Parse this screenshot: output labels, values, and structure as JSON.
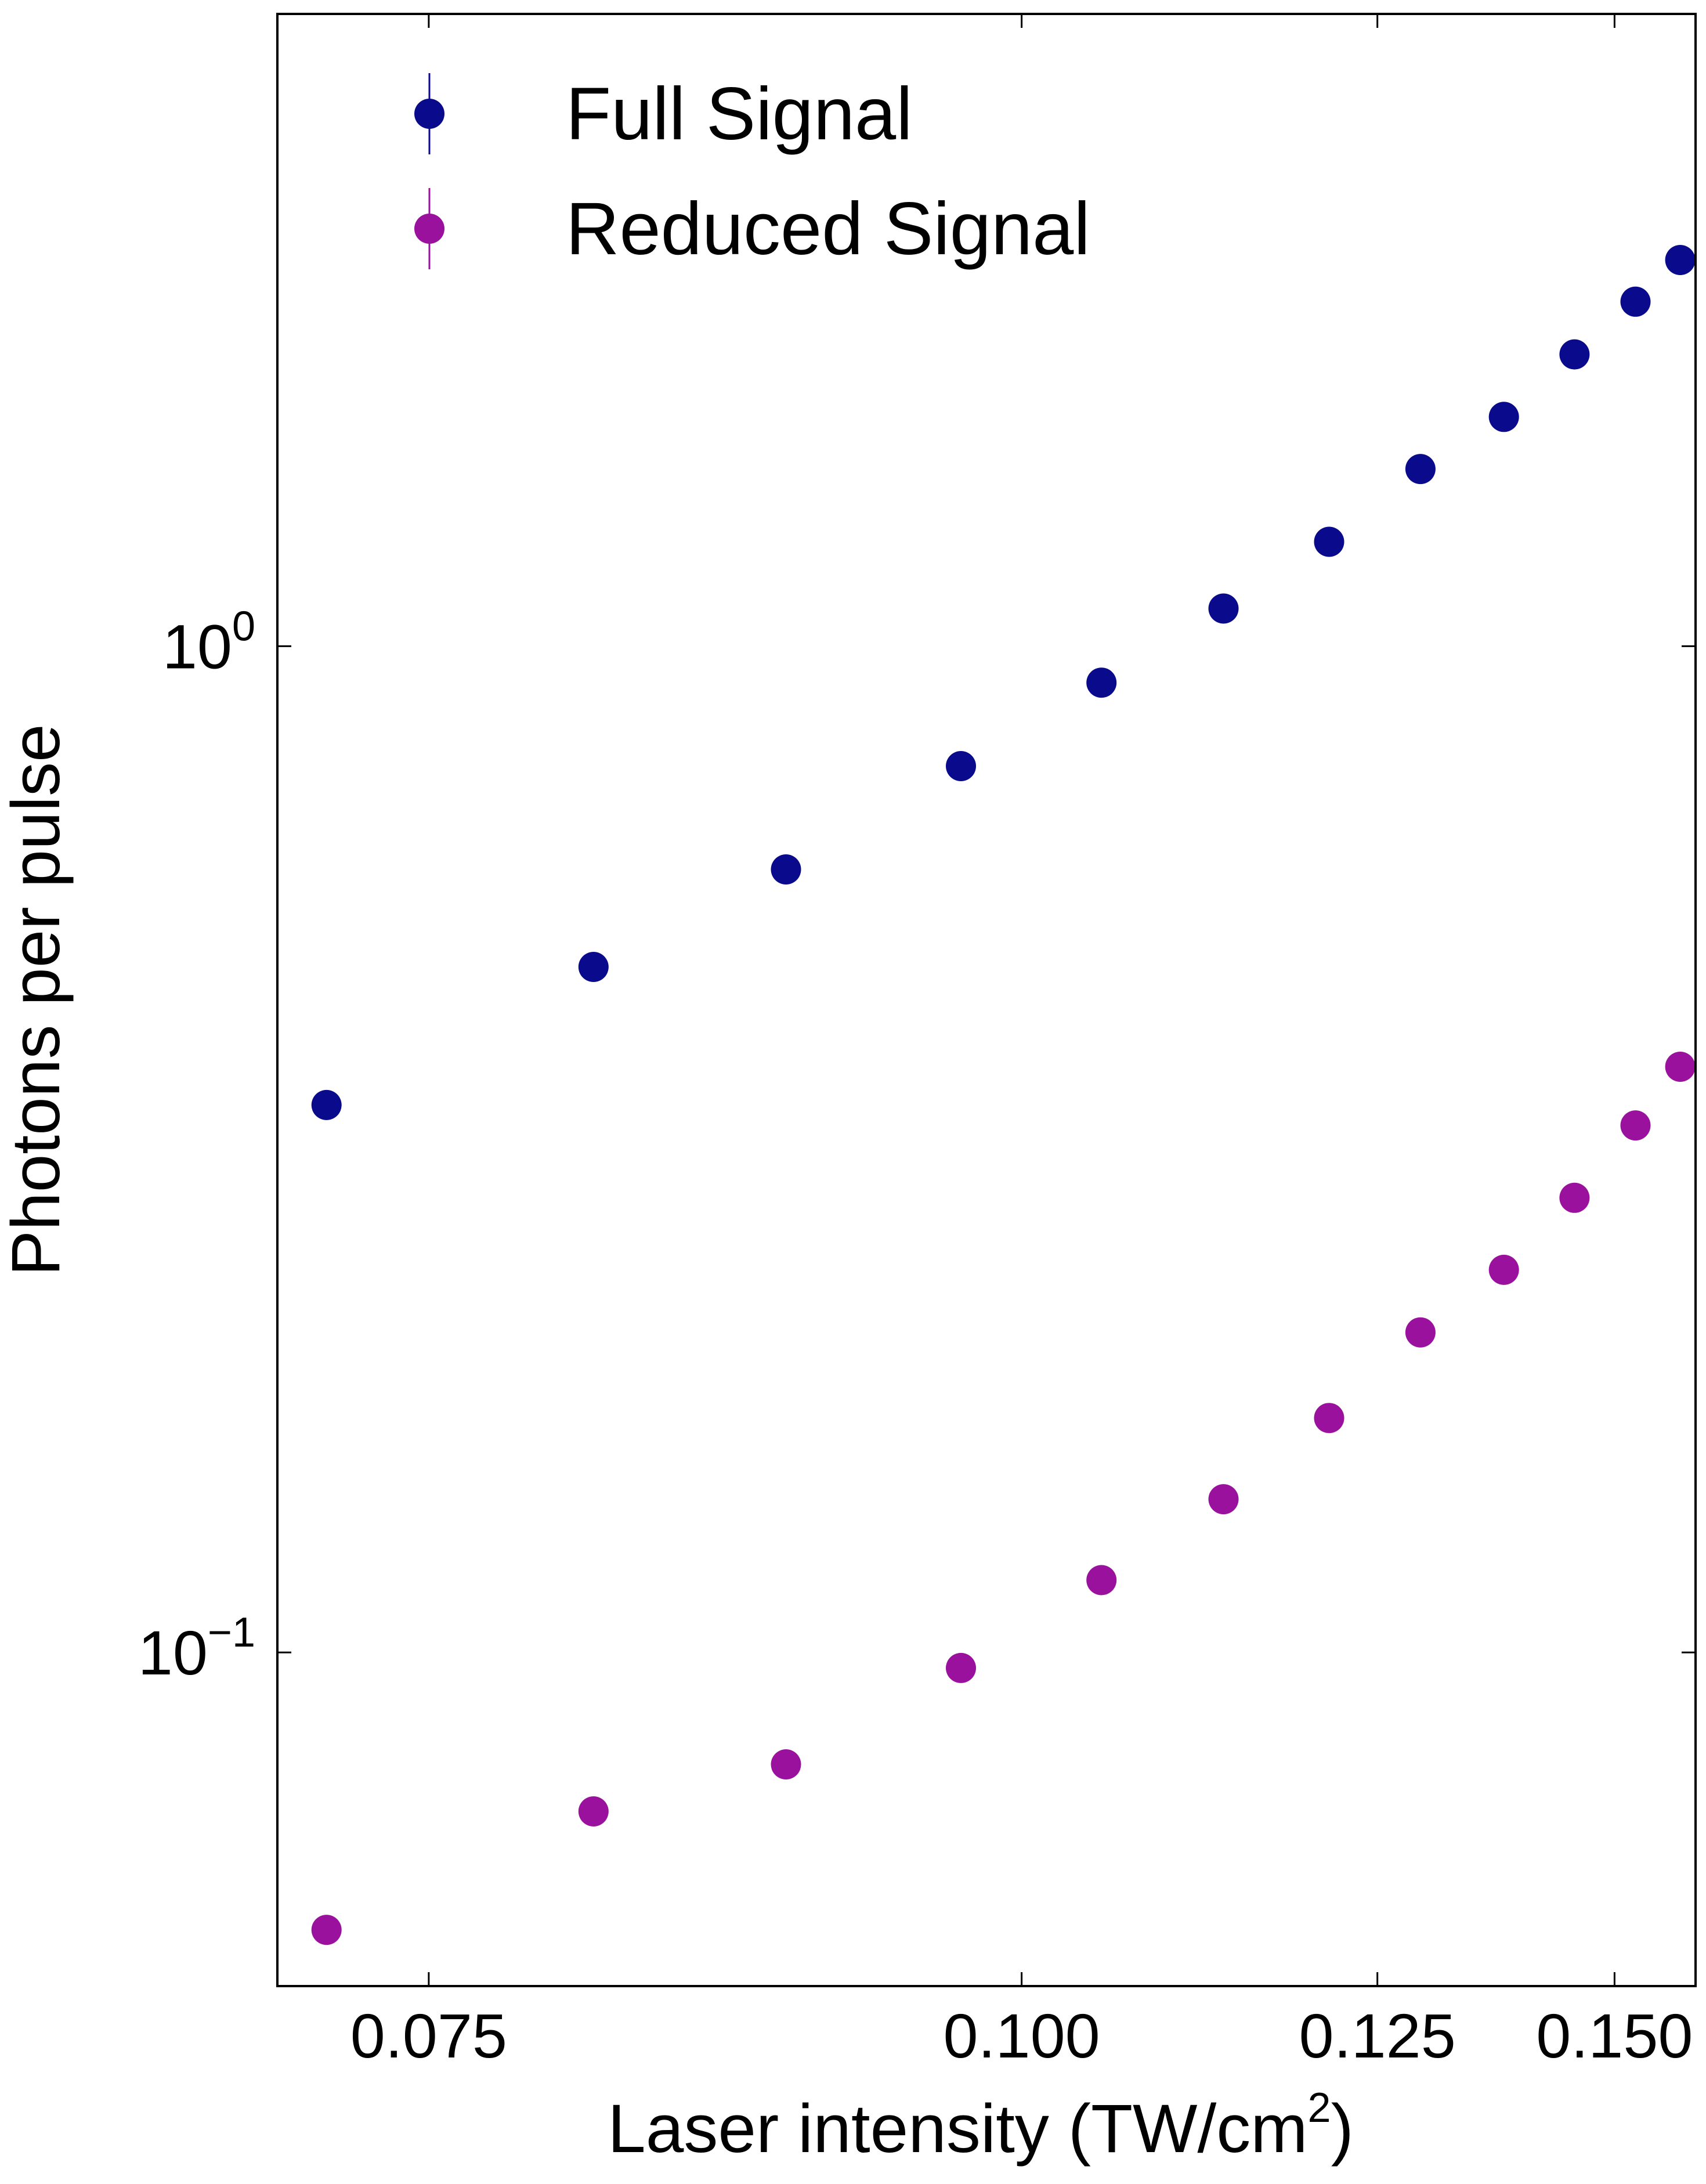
{
  "chart_data": {
    "type": "scatter",
    "xlabel": {
      "text": "Laser intensity (TW/cm",
      "superscript": "2",
      "suffix": ")"
    },
    "ylabel": "Photons per pulse",
    "x_scale": "reciprocal",
    "y_scale": "log",
    "xlim": [
      0.0705,
      0.161
    ],
    "ylim": [
      0.0466,
      4.25
    ],
    "x_ticks": [
      {
        "value": 0.075,
        "label": "0.075"
      },
      {
        "value": 0.1,
        "label": "0.100"
      },
      {
        "value": 0.125,
        "label": "0.125"
      },
      {
        "value": 0.15,
        "label": "0.150"
      }
    ],
    "y_ticks": [
      {
        "value": 1,
        "base": "10",
        "exp": "0"
      },
      {
        "value": 0.1,
        "base": "10",
        "exp": "−1"
      }
    ],
    "grid": false,
    "legend_position": "top-left",
    "x": [
      0.0719,
      0.0806,
      0.0883,
      0.0967,
      0.1047,
      0.1128,
      0.1209,
      0.1289,
      0.1372,
      0.1451,
      0.1527,
      0.1588
    ],
    "series": [
      {
        "name": "Full Signal",
        "color": "#0a0a8c",
        "values": [
          0.35,
          0.48,
          0.6,
          0.76,
          0.92,
          1.09,
          1.27,
          1.5,
          1.69,
          1.95,
          2.2,
          2.42
        ]
      },
      {
        "name": "Reduced Signal",
        "color": "#9a119e",
        "values": [
          0.053,
          0.0695,
          0.0774,
          0.0965,
          0.118,
          0.142,
          0.171,
          0.208,
          0.24,
          0.283,
          0.334,
          0.382
        ]
      }
    ]
  }
}
